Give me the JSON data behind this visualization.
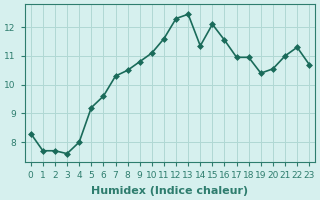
{
  "x": [
    0,
    1,
    2,
    3,
    4,
    5,
    6,
    7,
    8,
    9,
    10,
    11,
    12,
    13,
    14,
    15,
    16,
    17,
    18,
    19,
    20,
    21,
    22,
    23
  ],
  "y": [
    8.3,
    7.7,
    7.7,
    7.6,
    8.0,
    9.2,
    9.6,
    10.3,
    10.5,
    10.8,
    11.1,
    11.6,
    12.3,
    12.45,
    11.35,
    12.1,
    11.55,
    10.95,
    10.95,
    10.4,
    10.55,
    11.0,
    11.3,
    10.7
  ],
  "line_color": "#1a6b5a",
  "marker": "D",
  "markersize": 3,
  "linewidth": 1.2,
  "bg_color": "#d6f0ee",
  "grid_color": "#b0d8d4",
  "xlabel": "Humidex (Indice chaleur)",
  "xlabel_fontsize": 8,
  "yticks": [
    8,
    9,
    10,
    11,
    12
  ],
  "xtick_labels": [
    "0",
    "1",
    "2",
    "3",
    "4",
    "5",
    "6",
    "7",
    "8",
    "9",
    "10",
    "11",
    "12",
    "13",
    "14",
    "15",
    "16",
    "17",
    "18",
    "19",
    "20",
    "21",
    "22",
    "23"
  ],
  "ylim": [
    7.3,
    12.8
  ],
  "xlim": [
    -0.5,
    23.5
  ],
  "tick_color": "#2e7d6e",
  "tick_fontsize": 6.5,
  "axis_color": "#2e7d6e"
}
